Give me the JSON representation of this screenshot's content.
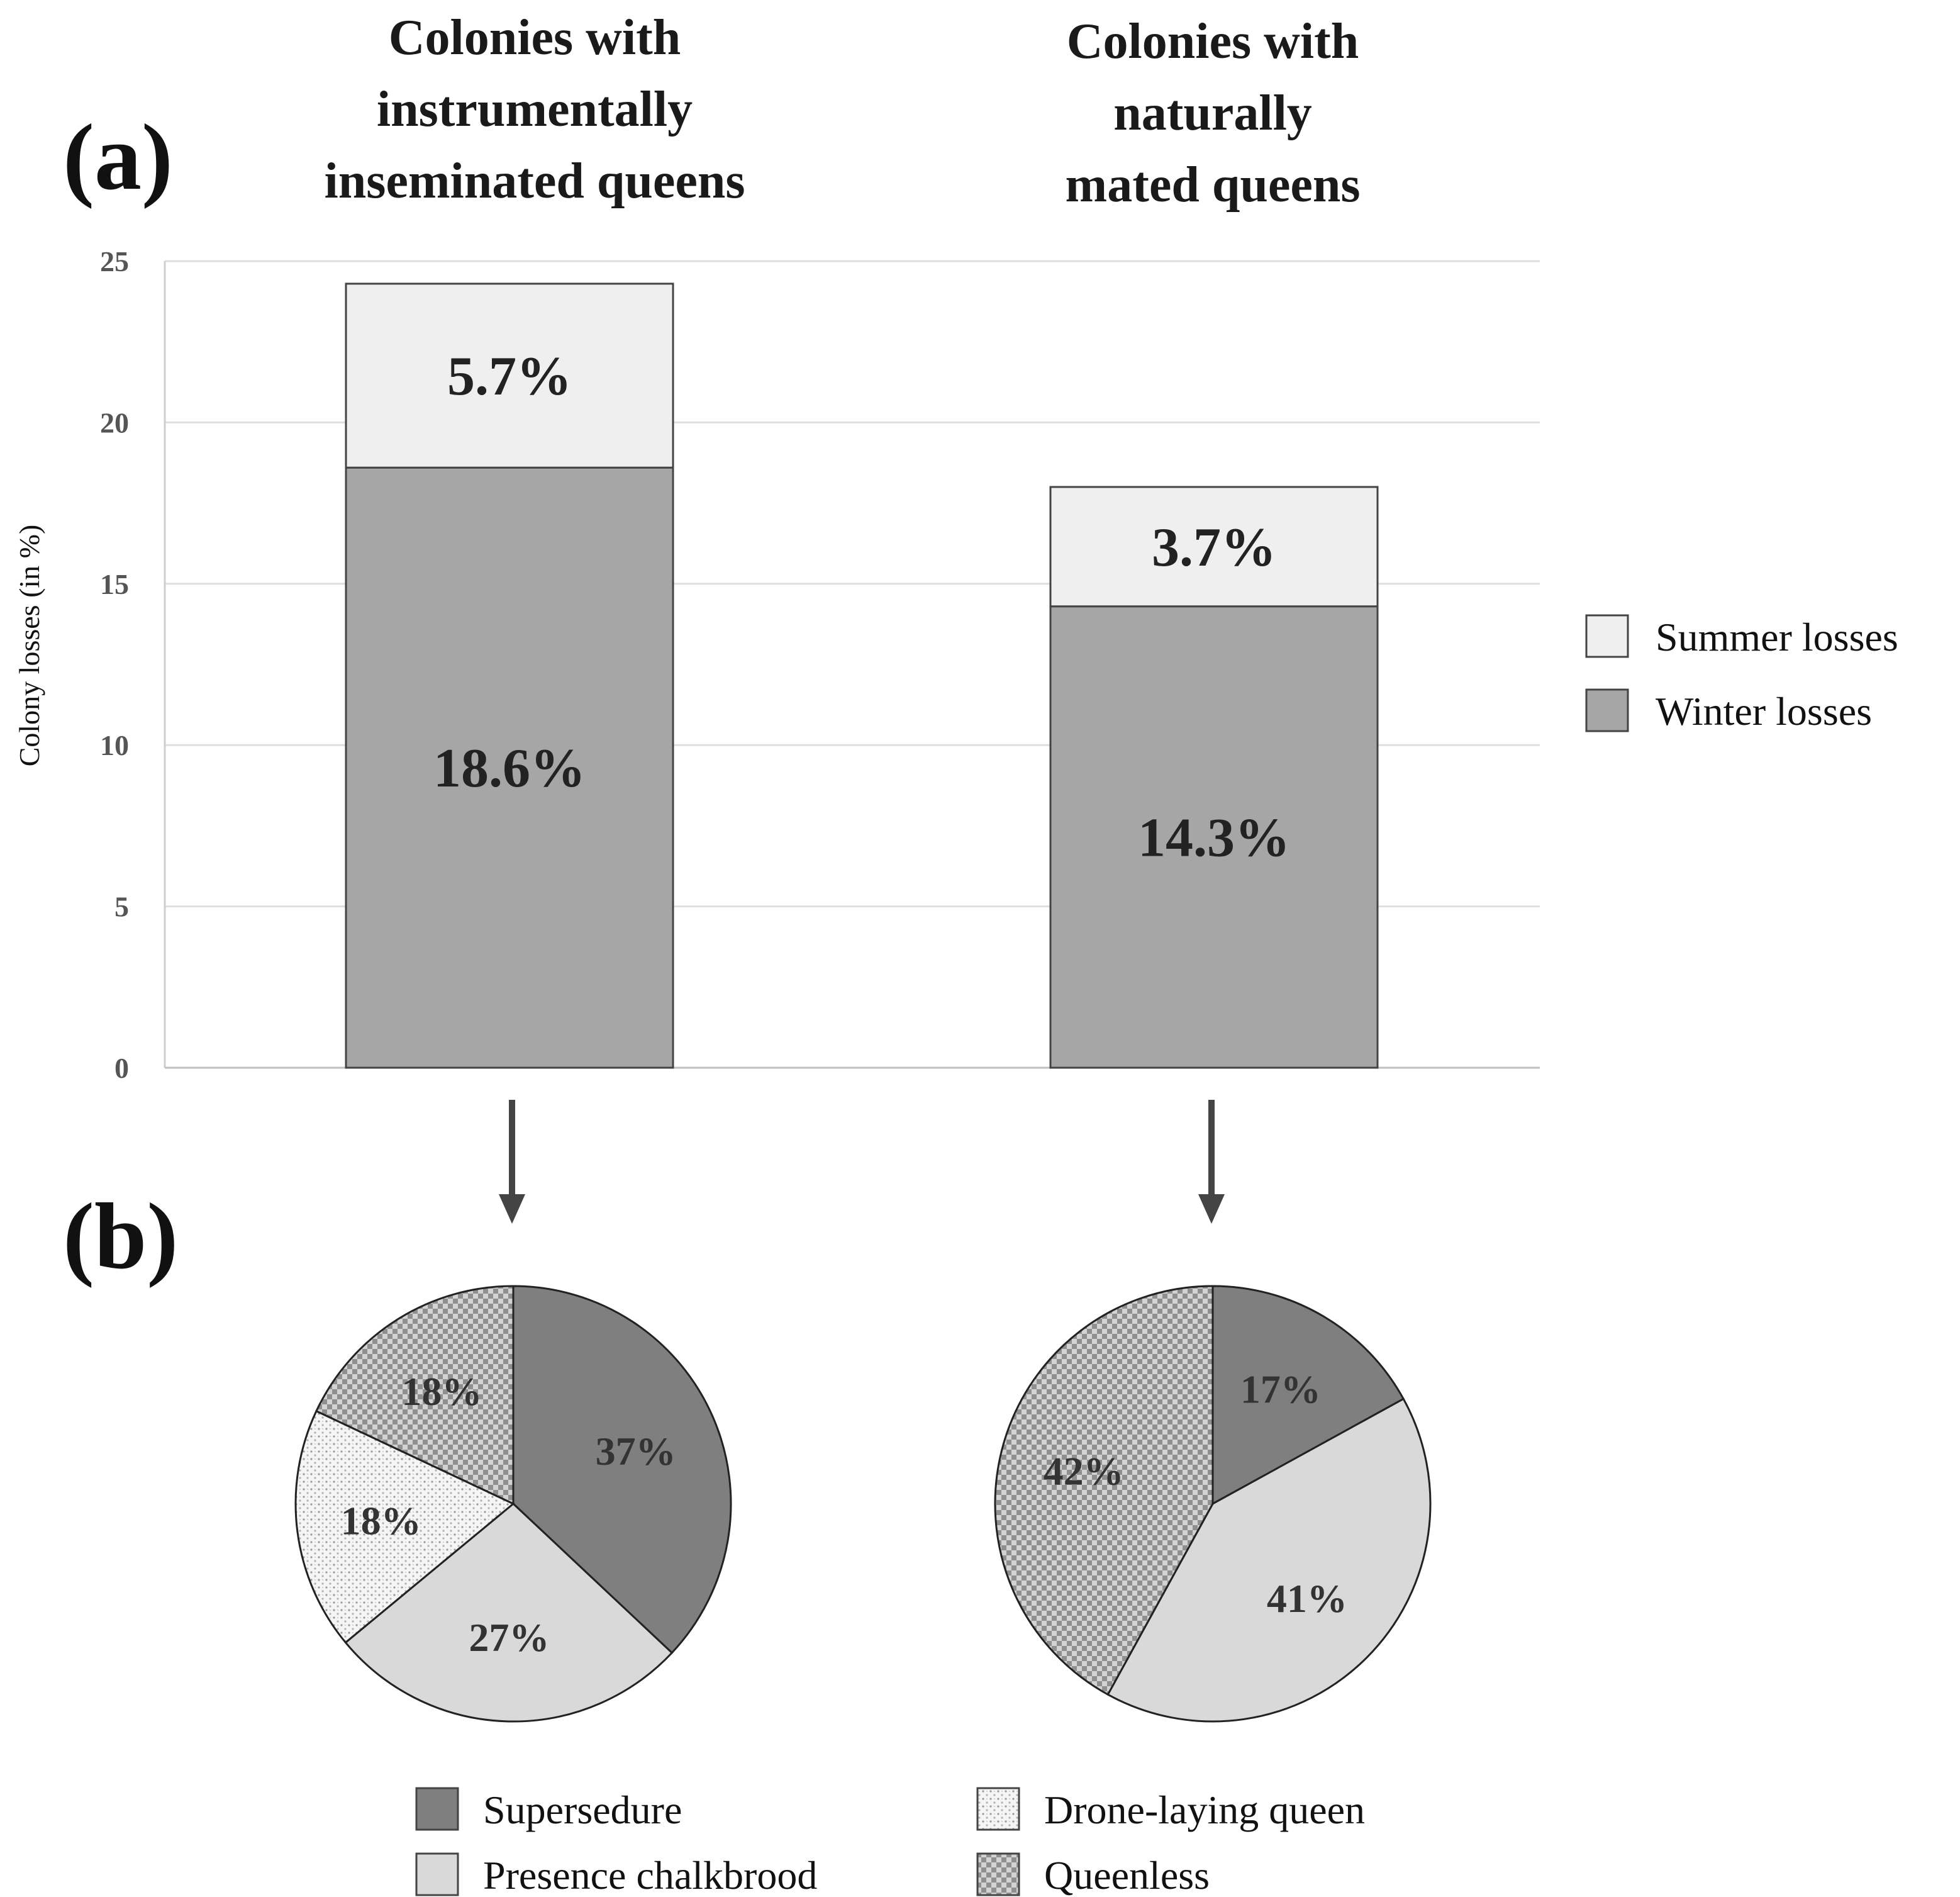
{
  "panels": {
    "a": "(a)",
    "b": "(b)"
  },
  "colors": {
    "summer": "#efefef",
    "winter": "#a6a6a6",
    "supersedure": "#7f7f7f",
    "chalkbrood": "#d9d9d9",
    "drone_laying": "#f2f2f2",
    "queenless": "#c8c8c8"
  },
  "chart_data": [
    {
      "type": "bar",
      "stacked": true,
      "ylabel": "Colony losses (in %)",
      "ylim": [
        0,
        25
      ],
      "yticks": [
        "0",
        "5",
        "10",
        "15",
        "20",
        "25"
      ],
      "categories": [
        [
          "Colonies with",
          "instrumentally",
          "inseminated queens"
        ],
        [
          "Colonies with",
          "naturally",
          "mated queens"
        ]
      ],
      "series": [
        {
          "name": "Winter losses",
          "values": [
            18.6,
            14.3
          ],
          "labels": [
            "18.6%",
            "14.3%"
          ]
        },
        {
          "name": "Summer losses",
          "values": [
            5.7,
            3.7
          ],
          "labels": [
            "5.7%",
            "3.7%"
          ]
        }
      ],
      "legend": [
        "Summer losses",
        "Winter losses"
      ],
      "legend_position": "right"
    },
    {
      "type": "pie",
      "title": [
        "Colonies with",
        "instrumentally",
        "inseminated queens"
      ],
      "slices": [
        {
          "name": "Supersedure",
          "value": 37,
          "label": "37%"
        },
        {
          "name": "Presence chalkbrood",
          "value": 27,
          "label": "27%"
        },
        {
          "name": "Drone-laying queen",
          "value": 18,
          "label": "18%"
        },
        {
          "name": "Queenless",
          "value": 18,
          "label": "18%"
        }
      ]
    },
    {
      "type": "pie",
      "title": [
        "Colonies with",
        "naturally",
        "mated queens"
      ],
      "slices": [
        {
          "name": "Supersedure",
          "value": 17,
          "label": "17%"
        },
        {
          "name": "Presence chalkbrood",
          "value": 41,
          "label": "41%"
        },
        {
          "name": "Drone-laying queen",
          "value": 0,
          "label": ""
        },
        {
          "name": "Queenless",
          "value": 42,
          "label": "42%"
        }
      ]
    }
  ],
  "pie_legend": [
    "Supersedure",
    "Drone-laying queen",
    "Presence chalkbrood",
    "Queenless"
  ]
}
